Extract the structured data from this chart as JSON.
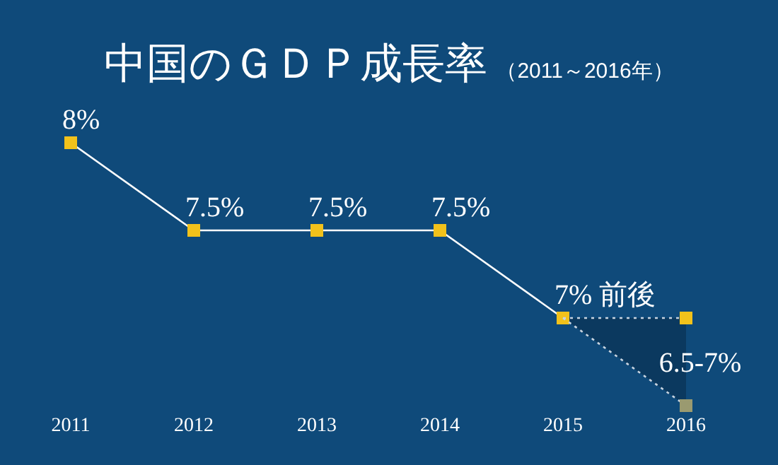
{
  "chart_data": {
    "type": "line",
    "title": "中国のＧＤＰ成長率",
    "subtitle": "（2011～2016年）",
    "categories": [
      "2011",
      "2012",
      "2013",
      "2014",
      "2015",
      "2016"
    ],
    "tick_labels": "x",
    "grid": false,
    "series": [
      {
        "color": "#ffffff",
        "colors": [
          "#f2c21b",
          "#f2c21b",
          "#f2c21b",
          "#f2c21b",
          "#f2c21b",
          null
        ],
        "marker": "square",
        "line_style": "solid",
        "values": [
          8,
          7.5,
          7.5,
          7.5,
          7,
          null
        ],
        "value_labels": [
          "8%",
          "7.5%",
          "7.5%",
          "7.5%",
          "7% 前後",
          null
        ]
      },
      {
        "color": "#c8d4e0",
        "colors": [
          null,
          null,
          null,
          null,
          null,
          "#f2c21b"
        ],
        "marker": "square",
        "line_style": "dotted",
        "values": [
          null,
          null,
          null,
          null,
          7,
          7
        ]
      },
      {
        "color": "#c8d4e0",
        "colors": [
          null,
          null,
          null,
          null,
          null,
          "#9a9a70"
        ],
        "marker": "square",
        "line_style": "dotted",
        "values": [
          null,
          null,
          null,
          null,
          7,
          6.5
        ],
        "lower": [
          null,
          null,
          null,
          null,
          7,
          6.5
        ],
        "upper": [
          null,
          null,
          null,
          null,
          7,
          7
        ]
      }
    ],
    "annotations": [
      {
        "text": "6.5-7%",
        "x": "2016",
        "y": 6.75
      }
    ]
  }
}
